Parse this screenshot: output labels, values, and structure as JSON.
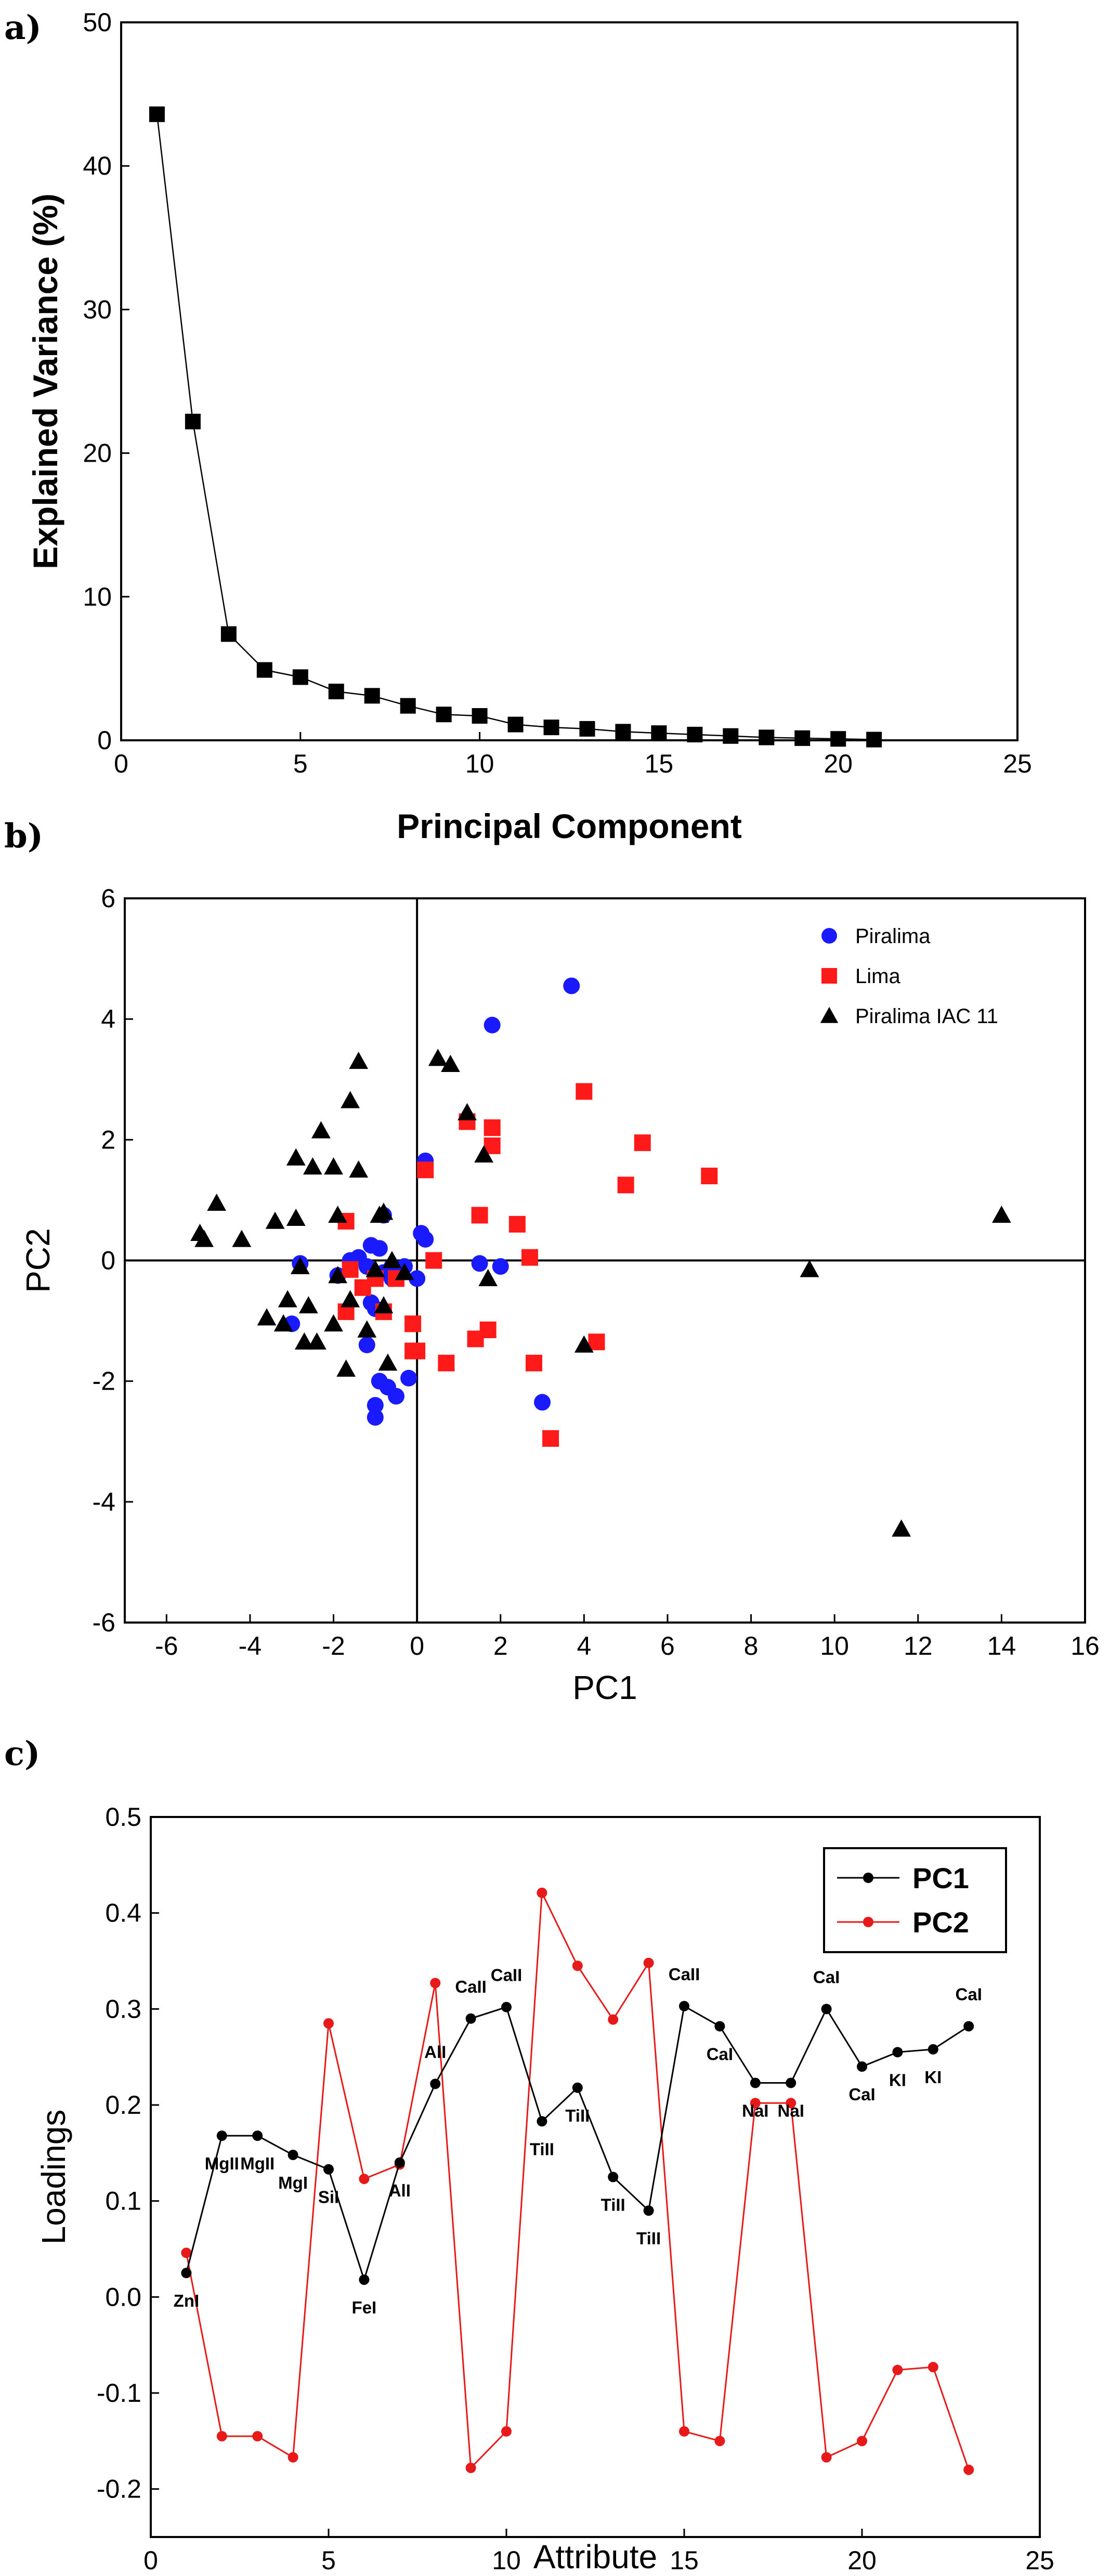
{
  "chart_data": [
    {
      "panel_label": "a)",
      "type": "line",
      "xlabel": "Principal Component",
      "ylabel": "Explained Variance (%)",
      "xlim": [
        0,
        25
      ],
      "ylim": [
        0,
        50
      ],
      "xticks": [
        "0",
        "5",
        "10",
        "15",
        "20",
        "25"
      ],
      "yticks": [
        "0",
        "10",
        "20",
        "30",
        "40",
        "50"
      ],
      "marker_color": "#000000",
      "x": [
        1,
        2,
        3,
        4,
        5,
        6,
        7,
        8,
        9,
        10,
        11,
        12,
        13,
        14,
        15,
        16,
        17,
        18,
        19,
        20,
        21
      ],
      "values": [
        43.6,
        22.2,
        7.4,
        4.9,
        4.4,
        3.4,
        3.1,
        2.4,
        1.8,
        1.7,
        1.1,
        0.9,
        0.8,
        0.6,
        0.5,
        0.4,
        0.3,
        0.2,
        0.15,
        0.1,
        0.05
      ]
    },
    {
      "panel_label": "b)",
      "type": "scatter",
      "xlabel": "PC1",
      "ylabel": "PC2",
      "xlim": [
        -7,
        16
      ],
      "ylim": [
        -6,
        6
      ],
      "xticks": [
        "-6",
        "-4",
        "-2",
        "0",
        "2",
        "4",
        "6",
        "8",
        "10",
        "12",
        "14",
        "16"
      ],
      "yticks": [
        "-6",
        "-4",
        "-2",
        "0",
        "2",
        "4",
        "6"
      ],
      "legend_position": "top-right",
      "series": [
        {
          "name": "Piralima",
          "marker": "circle",
          "color": "#1a1aff",
          "points": [
            [
              3.7,
              4.55
            ],
            [
              1.8,
              3.9
            ],
            [
              0.2,
              1.65
            ],
            [
              0.1,
              0.45
            ],
            [
              0.2,
              0.35
            ],
            [
              1.5,
              -0.05
            ],
            [
              2.0,
              -0.1
            ],
            [
              3.0,
              -2.35
            ],
            [
              -0.8,
              0.75
            ],
            [
              -1.1,
              0.25
            ],
            [
              -0.9,
              0.2
            ],
            [
              -1.4,
              0.05
            ],
            [
              -0.6,
              -0.1
            ],
            [
              -0.3,
              -0.1
            ],
            [
              -1.9,
              -0.25
            ],
            [
              -1.6,
              0.0
            ],
            [
              -1.2,
              -0.1
            ],
            [
              0.0,
              -0.3
            ],
            [
              -0.6,
              -0.3
            ],
            [
              -1.1,
              -0.7
            ],
            [
              -1.0,
              -0.8
            ],
            [
              -2.8,
              -0.05
            ],
            [
              -3.0,
              -1.05
            ],
            [
              -1.2,
              -1.4
            ],
            [
              -0.9,
              -2.0
            ],
            [
              -0.7,
              -2.1
            ],
            [
              -0.5,
              -2.25
            ],
            [
              -0.2,
              -1.95
            ],
            [
              -1.0,
              -2.4
            ],
            [
              -1.0,
              -2.6
            ],
            [
              -0.8,
              -0.2
            ]
          ]
        },
        {
          "name": "Lima",
          "marker": "square",
          "color": "#ff1a1a",
          "points": [
            [
              4.0,
              2.8
            ],
            [
              5.4,
              1.95
            ],
            [
              5.0,
              1.25
            ],
            [
              7.0,
              1.4
            ],
            [
              1.8,
              2.2
            ],
            [
              1.8,
              1.9
            ],
            [
              1.2,
              2.3
            ],
            [
              0.2,
              1.5
            ],
            [
              1.5,
              0.75
            ],
            [
              2.4,
              0.6
            ],
            [
              2.7,
              0.05
            ],
            [
              0.4,
              0.0
            ],
            [
              -1.7,
              0.65
            ],
            [
              -1.6,
              -0.15
            ],
            [
              -1.0,
              -0.3
            ],
            [
              -0.5,
              -0.3
            ],
            [
              -1.3,
              -0.45
            ],
            [
              -0.8,
              -0.85
            ],
            [
              -1.7,
              -0.85
            ],
            [
              1.7,
              -1.15
            ],
            [
              1.4,
              -1.3
            ],
            [
              4.3,
              -1.35
            ],
            [
              2.8,
              -1.7
            ],
            [
              0.7,
              -1.7
            ],
            [
              0.0,
              -1.5
            ],
            [
              -0.1,
              -1.05
            ],
            [
              -0.1,
              -1.5
            ],
            [
              3.2,
              -2.95
            ]
          ]
        },
        {
          "name": "Piralima IAC 11",
          "marker": "triangle",
          "color": "#000000",
          "points": [
            [
              14.0,
              0.75
            ],
            [
              9.4,
              -0.15
            ],
            [
              11.6,
              -4.45
            ],
            [
              4.0,
              -1.4
            ],
            [
              -1.4,
              3.3
            ],
            [
              -1.6,
              2.65
            ],
            [
              0.5,
              3.35
            ],
            [
              0.8,
              3.25
            ],
            [
              1.2,
              2.45
            ],
            [
              1.6,
              1.75
            ],
            [
              -2.3,
              2.15
            ],
            [
              -2.5,
              1.55
            ],
            [
              -2.9,
              1.7
            ],
            [
              -2.0,
              1.55
            ],
            [
              -1.4,
              1.5
            ],
            [
              -0.8,
              0.8
            ],
            [
              -0.9,
              0.75
            ],
            [
              -5.2,
              0.45
            ],
            [
              -5.1,
              0.35
            ],
            [
              -4.8,
              0.95
            ],
            [
              -4.2,
              0.35
            ],
            [
              -3.4,
              0.65
            ],
            [
              -2.9,
              0.7
            ],
            [
              -1.9,
              0.75
            ],
            [
              -3.2,
              -1.05
            ],
            [
              -3.6,
              -0.95
            ],
            [
              -3.1,
              -0.65
            ],
            [
              -2.6,
              -0.75
            ],
            [
              -2.4,
              -1.35
            ],
            [
              -2.7,
              -1.35
            ],
            [
              -2.0,
              -1.05
            ],
            [
              -1.6,
              -0.65
            ],
            [
              -1.7,
              -1.8
            ],
            [
              -1.9,
              -0.25
            ],
            [
              -1.0,
              -0.15
            ],
            [
              -0.8,
              -0.75
            ],
            [
              -0.7,
              -1.7
            ],
            [
              -0.3,
              -0.2
            ],
            [
              -2.8,
              -0.1
            ],
            [
              1.7,
              -0.3
            ],
            [
              -0.6,
              0.0
            ],
            [
              -1.2,
              -1.15
            ]
          ]
        }
      ]
    },
    {
      "panel_label": "c)",
      "type": "line",
      "xlabel": "Attribute",
      "ylabel": "Loadings",
      "xlim": [
        0,
        25
      ],
      "ylim": [
        -0.25,
        0.5
      ],
      "xticks": [
        "0",
        "5",
        "10",
        "15",
        "20",
        "25"
      ],
      "yticks": [
        "-0.2",
        "-0.1",
        "0.0",
        "0.1",
        "0.2",
        "0.3",
        "0.4",
        "0.5"
      ],
      "legend_position": "top-right",
      "x": [
        1,
        2,
        3,
        4,
        5,
        6,
        7,
        8,
        9,
        10,
        11,
        12,
        13,
        14,
        15,
        16,
        17,
        18,
        19,
        20,
        21,
        22,
        23
      ],
      "point_labels": [
        "ZnI",
        "MgII",
        "MgII",
        "MgI",
        "SiI",
        "FeI",
        "AlI",
        "AlI",
        "CaII",
        "CaII",
        "TiII",
        "TiII",
        "TiII",
        "TiII",
        "CaII",
        "CaI",
        "NaI",
        "NaI",
        "CaI",
        "CaI",
        "KI",
        "KI",
        "CaI"
      ],
      "series": [
        {
          "name": "PC1",
          "color": "#000000",
          "values": [
            0.025,
            0.168,
            0.168,
            0.148,
            0.133,
            0.018,
            0.14,
            0.222,
            0.29,
            0.302,
            0.183,
            0.218,
            0.125,
            0.09,
            0.303,
            0.282,
            0.223,
            0.223,
            0.3,
            0.24,
            0.255,
            0.258,
            0.282
          ]
        },
        {
          "name": "PC2",
          "color": "#e81919",
          "values": [
            0.046,
            -0.145,
            -0.145,
            -0.167,
            0.285,
            0.123,
            0.138,
            0.327,
            -0.178,
            -0.14,
            0.421,
            0.345,
            0.289,
            0.348,
            -0.14,
            -0.15,
            0.202,
            0.202,
            -0.167,
            -0.15,
            -0.076,
            -0.073,
            -0.18
          ]
        }
      ]
    }
  ]
}
